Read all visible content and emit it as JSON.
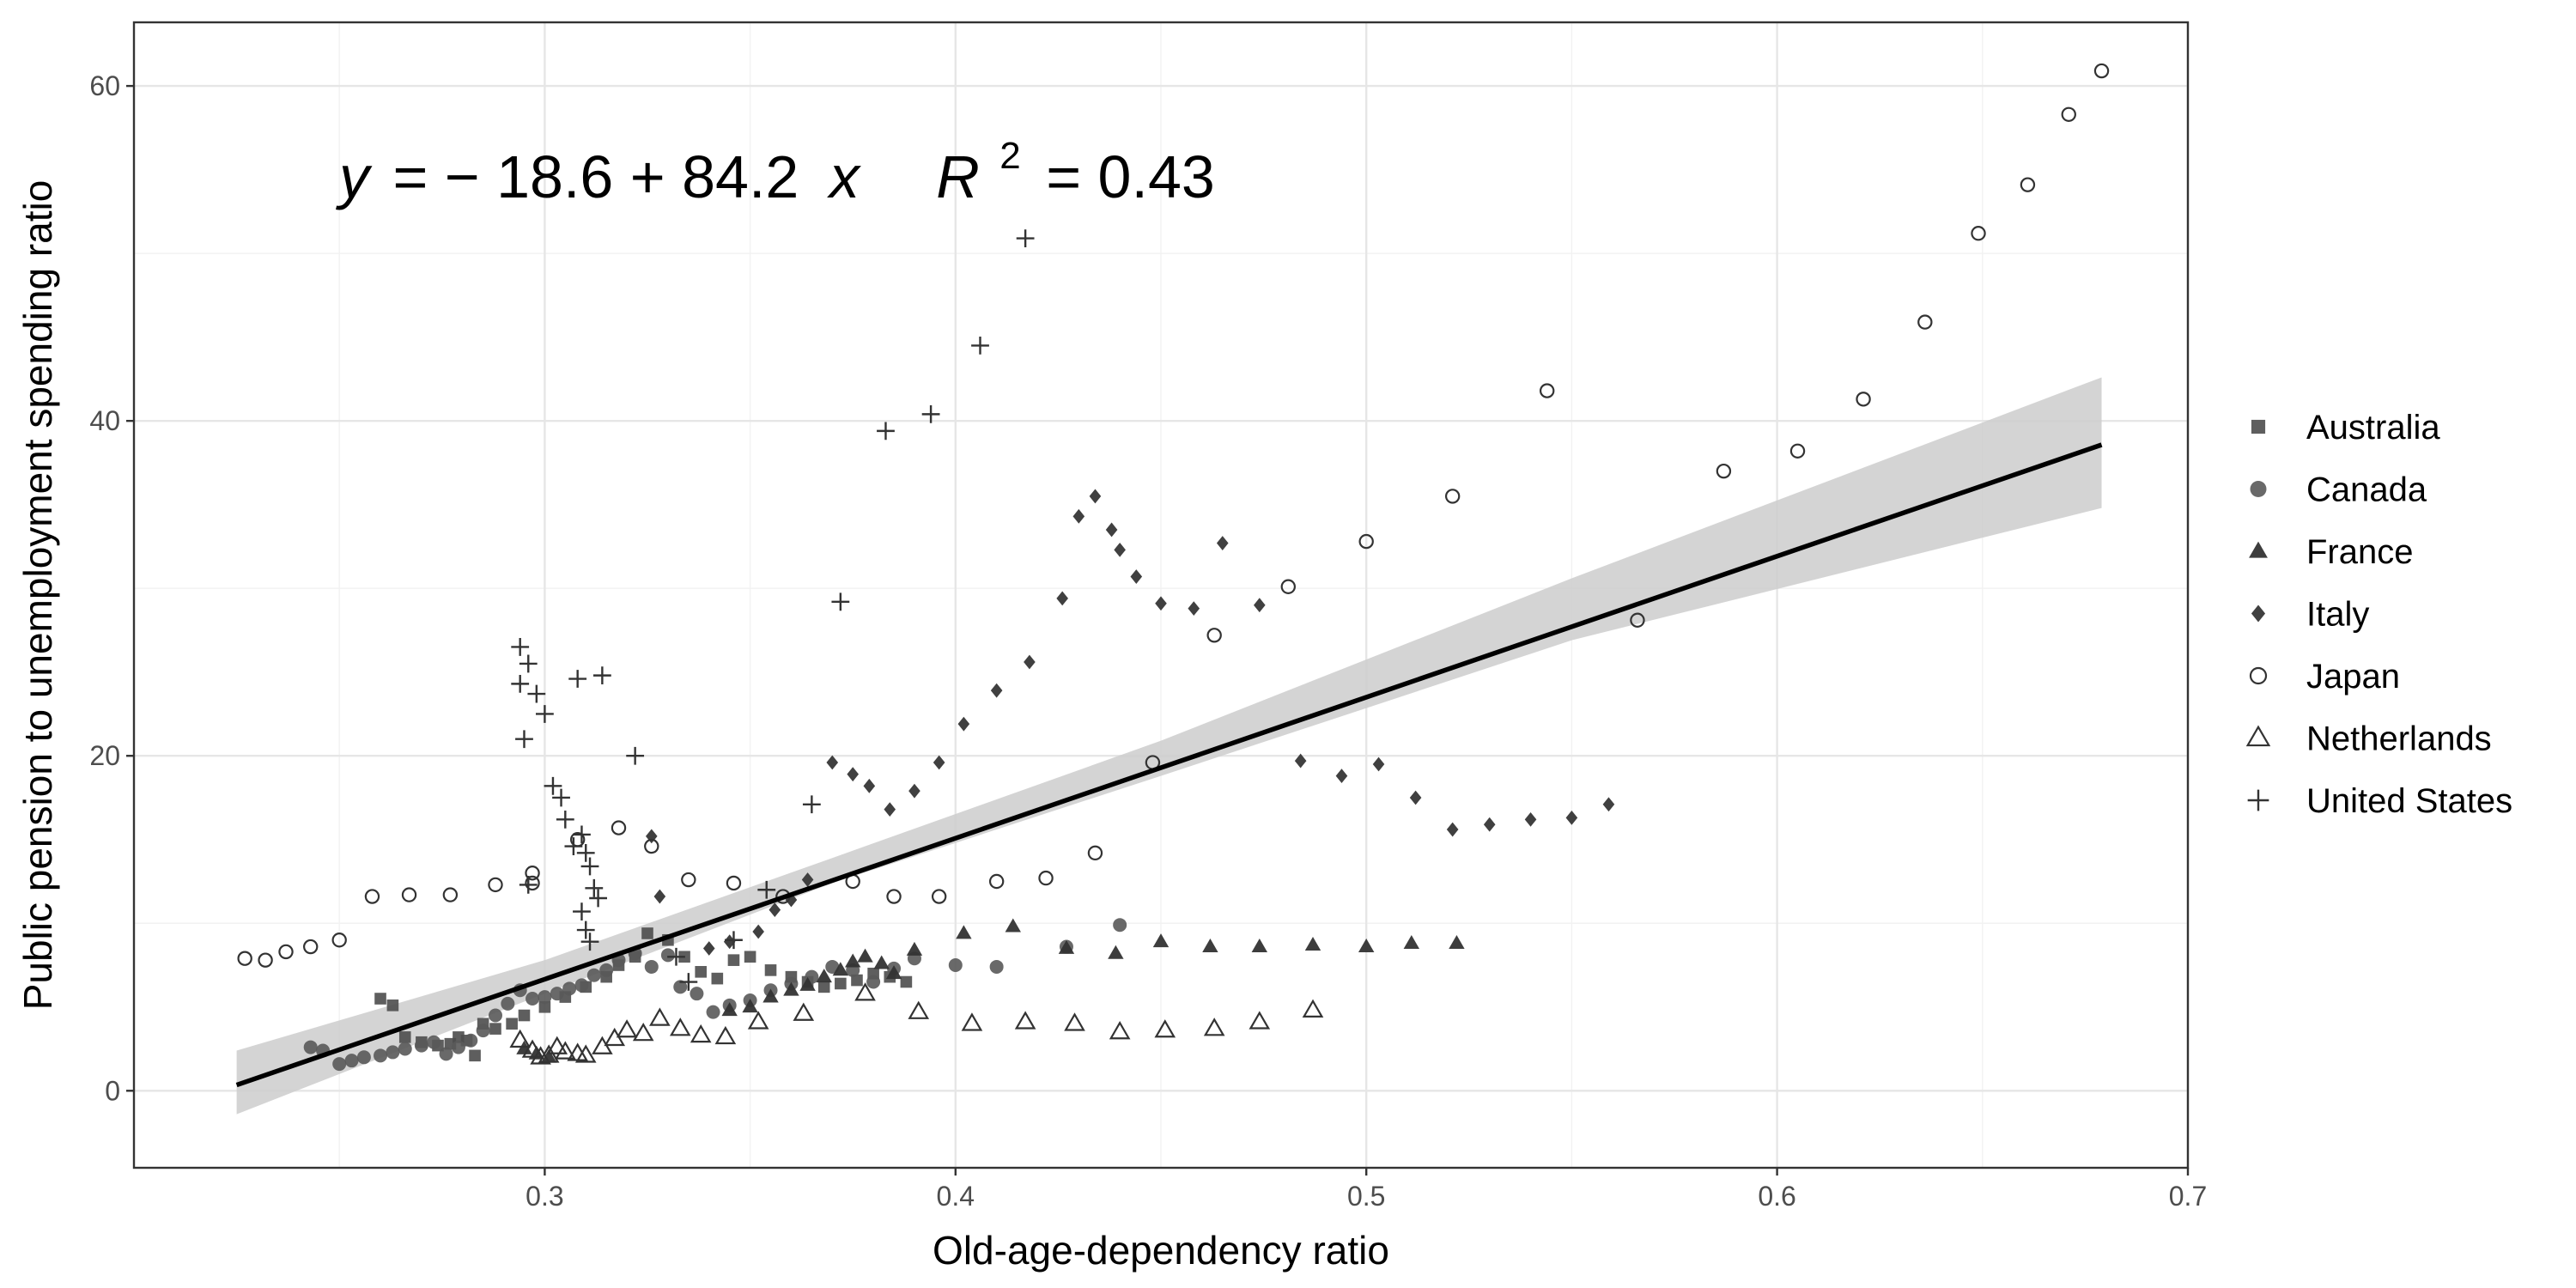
{
  "chart_data": {
    "type": "scatter",
    "title": "",
    "xlabel": "Old-age-dependency ratio",
    "ylabel": "Public pension to unemployment spending ratio",
    "xlim": [
      0.2,
      0.7
    ],
    "ylim": [
      -4.6,
      63.8
    ],
    "x_ticks": [
      "0.3",
      "0.4",
      "0.5",
      "0.6",
      "0.7"
    ],
    "y_ticks": [
      "0",
      "20",
      "40",
      "60"
    ],
    "grid": true,
    "legend_position": "right",
    "annotation": {
      "y": "y",
      "eq": "= − 18.6 + 84.2",
      "x": "x",
      "r": "R",
      "sup": "2",
      "rval": "= 0.43"
    },
    "fit": {
      "intercept": -18.6,
      "slope": 84.2,
      "x_range": [
        0.225,
        0.679
      ],
      "band_lower": [
        [
          0.225,
          -1.4
        ],
        [
          0.3,
          5.8
        ],
        [
          0.37,
          12.4
        ],
        [
          0.45,
          18.8
        ],
        [
          0.55,
          26.9
        ],
        [
          0.679,
          34.8
        ]
      ],
      "band_upper": [
        [
          0.225,
          2.4
        ],
        [
          0.3,
          7.8
        ],
        [
          0.37,
          13.9
        ],
        [
          0.45,
          20.9
        ],
        [
          0.55,
          30.6
        ],
        [
          0.679,
          42.6
        ]
      ],
      "band_color": "#cccccc",
      "line_color": "#000000"
    },
    "series": [
      {
        "name": "Australia",
        "marker": "square",
        "color": "#4d4d4d",
        "points": [
          [
            0.26,
            5.5
          ],
          [
            0.263,
            5.1
          ],
          [
            0.266,
            3.2
          ],
          [
            0.27,
            2.9
          ],
          [
            0.274,
            2.7
          ],
          [
            0.277,
            2.8
          ],
          [
            0.279,
            3.2
          ],
          [
            0.281,
            3.0
          ],
          [
            0.283,
            2.1
          ],
          [
            0.285,
            4.0
          ],
          [
            0.288,
            3.7
          ],
          [
            0.292,
            4.0
          ],
          [
            0.295,
            4.5
          ],
          [
            0.3,
            5.0
          ],
          [
            0.305,
            5.6
          ],
          [
            0.31,
            6.2
          ],
          [
            0.315,
            6.8
          ],
          [
            0.318,
            7.5
          ],
          [
            0.322,
            8.0
          ],
          [
            0.325,
            9.4
          ],
          [
            0.33,
            9.0
          ],
          [
            0.334,
            8.0
          ],
          [
            0.338,
            7.1
          ],
          [
            0.342,
            6.7
          ],
          [
            0.346,
            7.8
          ],
          [
            0.35,
            8.0
          ],
          [
            0.355,
            7.2
          ],
          [
            0.36,
            6.8
          ],
          [
            0.364,
            6.5
          ],
          [
            0.368,
            6.2
          ],
          [
            0.372,
            6.4
          ],
          [
            0.376,
            6.6
          ],
          [
            0.38,
            7.0
          ],
          [
            0.384,
            6.8
          ],
          [
            0.388,
            6.5
          ]
        ]
      },
      {
        "name": "Canada",
        "marker": "circle",
        "color": "#595959",
        "points": [
          [
            0.243,
            2.6
          ],
          [
            0.246,
            2.4
          ],
          [
            0.25,
            1.6
          ],
          [
            0.253,
            1.8
          ],
          [
            0.256,
            2.0
          ],
          [
            0.26,
            2.1
          ],
          [
            0.263,
            2.3
          ],
          [
            0.266,
            2.5
          ],
          [
            0.27,
            2.7
          ],
          [
            0.273,
            2.9
          ],
          [
            0.276,
            2.2
          ],
          [
            0.279,
            2.6
          ],
          [
            0.282,
            3.0
          ],
          [
            0.285,
            3.6
          ],
          [
            0.288,
            4.5
          ],
          [
            0.291,
            5.2
          ],
          [
            0.294,
            6.0
          ],
          [
            0.297,
            5.5
          ],
          [
            0.3,
            5.6
          ],
          [
            0.303,
            5.8
          ],
          [
            0.306,
            6.1
          ],
          [
            0.309,
            6.3
          ],
          [
            0.312,
            6.9
          ],
          [
            0.315,
            7.2
          ],
          [
            0.318,
            7.8
          ],
          [
            0.322,
            8.2
          ],
          [
            0.326,
            7.4
          ],
          [
            0.33,
            8.1
          ],
          [
            0.333,
            6.2
          ],
          [
            0.337,
            5.8
          ],
          [
            0.341,
            4.7
          ],
          [
            0.345,
            5.1
          ],
          [
            0.35,
            5.4
          ],
          [
            0.355,
            6.0
          ],
          [
            0.36,
            6.4
          ],
          [
            0.365,
            6.8
          ],
          [
            0.37,
            7.4
          ],
          [
            0.375,
            7.2
          ],
          [
            0.38,
            6.5
          ],
          [
            0.385,
            7.3
          ],
          [
            0.39,
            7.9
          ],
          [
            0.4,
            7.5
          ],
          [
            0.41,
            7.4
          ],
          [
            0.427,
            8.6
          ],
          [
            0.44,
            9.9
          ]
        ]
      },
      {
        "name": "France",
        "marker": "triangle",
        "color": "#333333",
        "points": [
          [
            0.295,
            2.5
          ],
          [
            0.298,
            2.2
          ],
          [
            0.301,
            2.0
          ],
          [
            0.345,
            4.8
          ],
          [
            0.35,
            5.0
          ],
          [
            0.355,
            5.6
          ],
          [
            0.36,
            6.0
          ],
          [
            0.364,
            6.3
          ],
          [
            0.368,
            6.8
          ],
          [
            0.372,
            7.2
          ],
          [
            0.375,
            7.7
          ],
          [
            0.378,
            8.0
          ],
          [
            0.382,
            7.6
          ],
          [
            0.385,
            7.0
          ],
          [
            0.39,
            8.4
          ],
          [
            0.402,
            9.4
          ],
          [
            0.414,
            9.8
          ],
          [
            0.427,
            8.5
          ],
          [
            0.439,
            8.2
          ],
          [
            0.45,
            8.9
          ],
          [
            0.462,
            8.6
          ],
          [
            0.474,
            8.6
          ],
          [
            0.487,
            8.7
          ],
          [
            0.5,
            8.6
          ],
          [
            0.511,
            8.8
          ],
          [
            0.522,
            8.8
          ]
        ]
      },
      {
        "name": "Italy",
        "marker": "diamond",
        "color": "#404040",
        "points": [
          [
            0.326,
            15.2
          ],
          [
            0.328,
            11.6
          ],
          [
            0.34,
            8.5
          ],
          [
            0.345,
            8.9
          ],
          [
            0.352,
            9.5
          ],
          [
            0.356,
            10.8
          ],
          [
            0.36,
            11.4
          ],
          [
            0.364,
            12.6
          ],
          [
            0.37,
            19.6
          ],
          [
            0.375,
            18.9
          ],
          [
            0.379,
            18.2
          ],
          [
            0.384,
            16.8
          ],
          [
            0.39,
            17.9
          ],
          [
            0.396,
            19.6
          ],
          [
            0.402,
            21.9
          ],
          [
            0.41,
            23.9
          ],
          [
            0.418,
            25.6
          ],
          [
            0.426,
            29.4
          ],
          [
            0.43,
            34.3
          ],
          [
            0.434,
            35.5
          ],
          [
            0.438,
            33.5
          ],
          [
            0.44,
            32.3
          ],
          [
            0.444,
            30.7
          ],
          [
            0.45,
            29.1
          ],
          [
            0.458,
            28.8
          ],
          [
            0.465,
            32.7
          ],
          [
            0.474,
            29.0
          ],
          [
            0.484,
            19.7
          ],
          [
            0.494,
            18.8
          ],
          [
            0.503,
            19.5
          ],
          [
            0.512,
            17.5
          ],
          [
            0.521,
            15.6
          ],
          [
            0.53,
            15.9
          ],
          [
            0.54,
            16.2
          ],
          [
            0.55,
            16.3
          ],
          [
            0.559,
            17.1
          ]
        ]
      },
      {
        "name": "Japan",
        "marker": "circle-open",
        "color": "#333333",
        "points": [
          [
            0.227,
            7.9
          ],
          [
            0.232,
            7.8
          ],
          [
            0.237,
            8.3
          ],
          [
            0.243,
            8.6
          ],
          [
            0.25,
            9.0
          ],
          [
            0.258,
            11.6
          ],
          [
            0.267,
            11.7
          ],
          [
            0.277,
            11.7
          ],
          [
            0.288,
            12.3
          ],
          [
            0.297,
            12.4
          ],
          [
            0.297,
            13.0
          ],
          [
            0.308,
            15.0
          ],
          [
            0.326,
            14.6
          ],
          [
            0.318,
            15.7
          ],
          [
            0.335,
            12.6
          ],
          [
            0.346,
            12.4
          ],
          [
            0.358,
            11.6
          ],
          [
            0.375,
            12.5
          ],
          [
            0.385,
            11.6
          ],
          [
            0.396,
            11.6
          ],
          [
            0.41,
            12.5
          ],
          [
            0.422,
            12.7
          ],
          [
            0.434,
            14.2
          ],
          [
            0.448,
            19.6
          ],
          [
            0.463,
            27.2
          ],
          [
            0.481,
            30.1
          ],
          [
            0.5,
            32.8
          ],
          [
            0.521,
            35.5
          ],
          [
            0.544,
            41.8
          ],
          [
            0.566,
            28.1
          ],
          [
            0.587,
            37.0
          ],
          [
            0.605,
            38.2
          ],
          [
            0.621,
            41.3
          ],
          [
            0.636,
            45.9
          ],
          [
            0.649,
            51.2
          ],
          [
            0.661,
            54.1
          ],
          [
            0.671,
            58.3
          ],
          [
            0.679,
            60.9
          ]
        ]
      },
      {
        "name": "Netherlands",
        "marker": "triangle-open",
        "color": "#333333",
        "points": [
          [
            0.294,
            3.0
          ],
          [
            0.297,
            2.4
          ],
          [
            0.299,
            2.0
          ],
          [
            0.301,
            2.1
          ],
          [
            0.303,
            2.6
          ],
          [
            0.305,
            2.3
          ],
          [
            0.308,
            2.2
          ],
          [
            0.31,
            2.1
          ],
          [
            0.314,
            2.6
          ],
          [
            0.317,
            3.1
          ],
          [
            0.32,
            3.6
          ],
          [
            0.324,
            3.4
          ],
          [
            0.328,
            4.3
          ],
          [
            0.333,
            3.7
          ],
          [
            0.338,
            3.3
          ],
          [
            0.344,
            3.2
          ],
          [
            0.352,
            4.1
          ],
          [
            0.363,
            4.6
          ],
          [
            0.378,
            5.8
          ],
          [
            0.391,
            4.7
          ],
          [
            0.404,
            4.0
          ],
          [
            0.417,
            4.1
          ],
          [
            0.429,
            4.0
          ],
          [
            0.44,
            3.5
          ],
          [
            0.451,
            3.6
          ],
          [
            0.463,
            3.7
          ],
          [
            0.474,
            4.1
          ],
          [
            0.487,
            4.8
          ]
        ]
      },
      {
        "name": "United States",
        "marker": "plus",
        "color": "#333333",
        "points": [
          [
            0.294,
            26.5
          ],
          [
            0.294,
            24.3
          ],
          [
            0.296,
            25.5
          ],
          [
            0.298,
            23.7
          ],
          [
            0.295,
            21.0
          ],
          [
            0.3,
            22.5
          ],
          [
            0.302,
            18.2
          ],
          [
            0.304,
            17.5
          ],
          [
            0.305,
            16.2
          ],
          [
            0.307,
            14.6
          ],
          [
            0.309,
            15.3
          ],
          [
            0.31,
            14.2
          ],
          [
            0.311,
            13.4
          ],
          [
            0.312,
            12.1
          ],
          [
            0.313,
            11.5
          ],
          [
            0.309,
            10.7
          ],
          [
            0.31,
            9.6
          ],
          [
            0.311,
            8.9
          ],
          [
            0.308,
            24.6
          ],
          [
            0.314,
            24.8
          ],
          [
            0.296,
            12.3
          ],
          [
            0.322,
            20.0
          ],
          [
            0.332,
            8.0
          ],
          [
            0.335,
            6.5
          ],
          [
            0.346,
            9.0
          ],
          [
            0.354,
            12.0
          ],
          [
            0.365,
            17.1
          ],
          [
            0.372,
            29.2
          ],
          [
            0.383,
            39.4
          ],
          [
            0.394,
            40.4
          ],
          [
            0.406,
            44.5
          ],
          [
            0.417,
            50.9
          ]
        ]
      }
    ]
  }
}
